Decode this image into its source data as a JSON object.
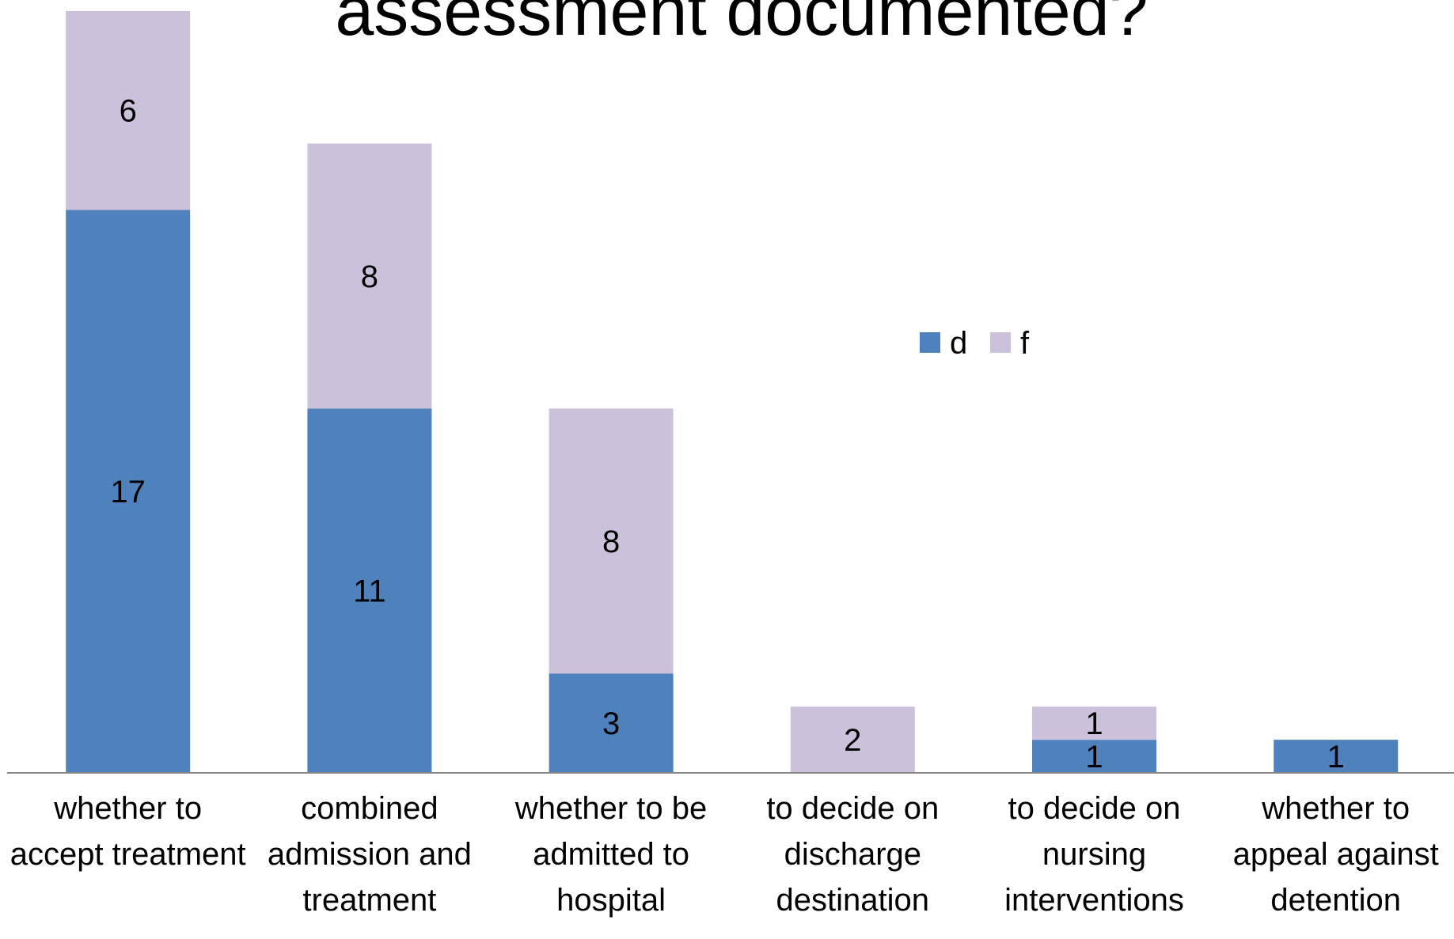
{
  "chart_data": {
    "type": "bar",
    "stacked": true,
    "title": "assessment documented?",
    "categories": [
      "whether to accept treatment",
      "combined admission and treatment",
      "whether to be admitted to hospital",
      "to decide on discharge destination",
      "to decide on nursing interventions",
      "whether to appeal against detention"
    ],
    "series": [
      {
        "name": "d",
        "color": "#4f81bd",
        "values": [
          17,
          11,
          3,
          null,
          1,
          1
        ]
      },
      {
        "name": "f",
        "color": "#ccc1da",
        "values": [
          6,
          8,
          8,
          2,
          1,
          null
        ]
      }
    ],
    "ylim": [
      0,
      23
    ],
    "legend": "center"
  }
}
